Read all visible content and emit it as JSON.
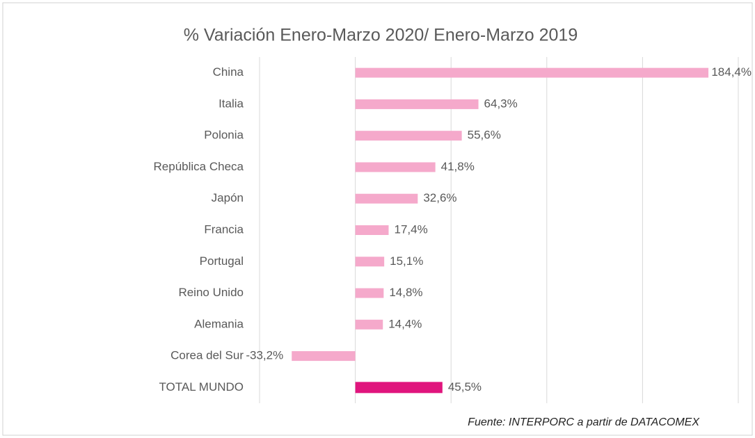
{
  "chart_data": {
    "type": "hbar",
    "title": "% Variación Enero-Marzo 2020/ Enero-Marzo 2019",
    "categories": [
      "China",
      "Italia",
      "Polonia",
      "República Checa",
      "Japón",
      "Francia",
      "Portugal",
      "Reino Unido",
      "Alemania",
      "Corea del Sur",
      "TOTAL MUNDO"
    ],
    "values": [
      184.4,
      64.3,
      55.6,
      41.8,
      32.6,
      17.4,
      15.1,
      14.8,
      14.4,
      -33.2,
      45.5
    ],
    "value_labels": [
      "184,4%",
      "64,3%",
      "55,6%",
      "41,8%",
      "32,6%",
      "17,4%",
      "15,1%",
      "14,8%",
      "14,4%",
      "-33,2%",
      "45,5%"
    ],
    "colors": [
      "#f5a9cb",
      "#f5a9cb",
      "#f5a9cb",
      "#f5a9cb",
      "#f5a9cb",
      "#f5a9cb",
      "#f5a9cb",
      "#f5a9cb",
      "#f5a9cb",
      "#f5a9cb",
      "#e0157d"
    ],
    "xlim": [
      -50,
      200
    ],
    "xticks": [
      -50,
      0,
      50,
      100,
      150,
      200
    ],
    "grid": true,
    "source": "Fuente: INTERPORC  a partir de DATACOMEX"
  }
}
